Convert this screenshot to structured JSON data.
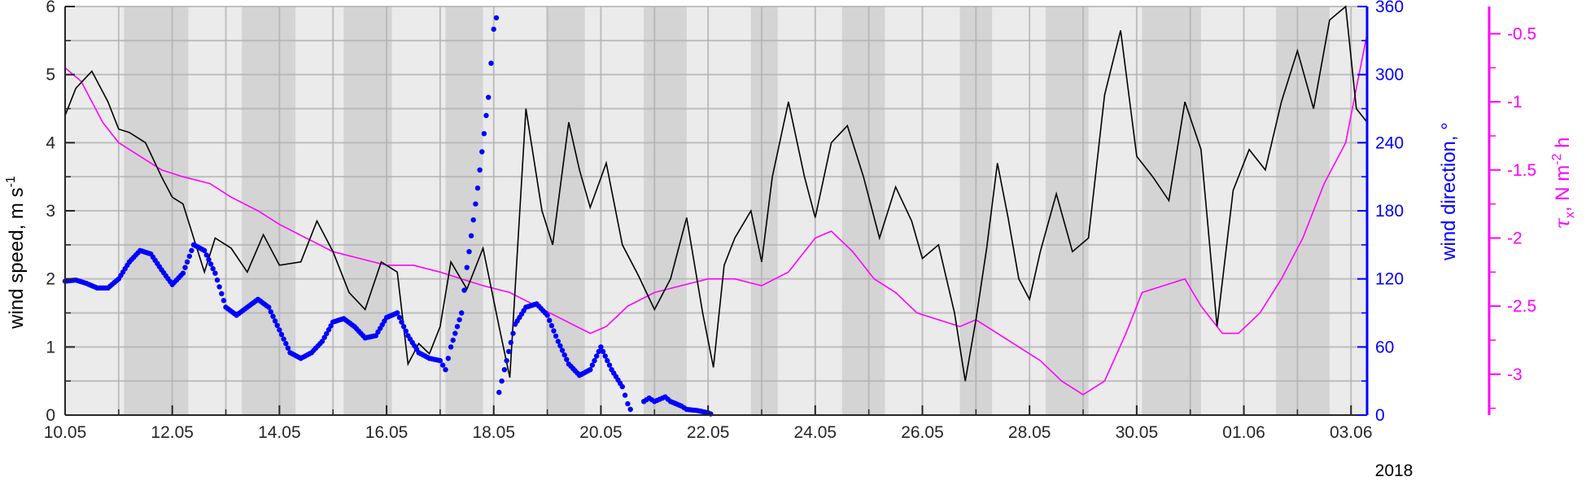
{
  "chart_data": {
    "type": "line",
    "x_axis": {
      "tick_labels": [
        "10.05",
        "12.05",
        "14.05",
        "16.05",
        "18.05",
        "20.05",
        "22.05",
        "24.05",
        "26.05",
        "28.05",
        "30.05",
        "01.06",
        "03.06"
      ],
      "range": [
        "2018-05-10",
        "2018-06-04"
      ],
      "year_label": "2018"
    },
    "y_left": {
      "label_main": "wind speed, m s",
      "label_sup": "-1",
      "range": [
        0,
        6
      ],
      "ticks": [
        "0",
        "1",
        "2",
        "3",
        "4",
        "5",
        "6"
      ],
      "color": "#000000"
    },
    "y_right1": {
      "label": "wind direction, °",
      "range": [
        0,
        360
      ],
      "ticks": [
        "0",
        "60",
        "120",
        "180",
        "240",
        "300",
        "360"
      ],
      "color": "#0000ff"
    },
    "y_right2": {
      "label_tau": "τ",
      "label_sub": "x",
      "label_mid": ", N m",
      "label_sup": "-2",
      "label_end": " h",
      "range": [
        -3.3,
        -0.3
      ],
      "ticks": [
        "-3",
        "-2.5",
        "-2",
        "-1.5",
        "-1",
        "-0.5"
      ],
      "color": "#ff00ff"
    },
    "grid": true,
    "background_bands": {
      "description": "alternating light/dark day shading",
      "light": "#ebebeb",
      "dark": "#d4d4d4",
      "dark_intervals": [
        [
          "2018-05-11.1",
          "2018-05-12.3"
        ],
        [
          "2018-05-13.3",
          "2018-05-14.3"
        ],
        [
          "2018-05-15.2",
          "2018-05-16.1"
        ],
        [
          "2018-05-17.1",
          "2018-05-17.8"
        ],
        [
          "2018-05-19.0",
          "2018-05-19.7"
        ],
        [
          "2018-05-20.8",
          "2018-05-21.6"
        ],
        [
          "2018-05-22.8",
          "2018-05-23.3"
        ],
        [
          "2018-05-24.5",
          "2018-05-25.3"
        ],
        [
          "2018-05-26.7",
          "2018-05-27.3"
        ],
        [
          "2018-05-28.3",
          "2018-05-29.1"
        ],
        [
          "2018-05-30.1",
          "2018-05-31.2"
        ],
        [
          "2018-06-01.6",
          "2018-06-02.6"
        ]
      ]
    },
    "series": [
      {
        "kind": "wind_speed",
        "axis": "left",
        "color": "#000000",
        "style": "line",
        "points": [
          [
            "05-10.0",
            4.4
          ],
          [
            "05-10.2",
            4.8
          ],
          [
            "05-10.5",
            5.05
          ],
          [
            "05-10.8",
            4.6
          ],
          [
            "05-11.0",
            4.2
          ],
          [
            "05-11.2",
            4.15
          ],
          [
            "05-11.5",
            4.0
          ],
          [
            "05-11.8",
            3.5
          ],
          [
            "05-12.0",
            3.2
          ],
          [
            "05-12.2",
            3.1
          ],
          [
            "05-12.4",
            2.6
          ],
          [
            "05-12.6",
            2.1
          ],
          [
            "05-12.8",
            2.6
          ],
          [
            "05-13.1",
            2.45
          ],
          [
            "05-13.4",
            2.1
          ],
          [
            "05-13.7",
            2.65
          ],
          [
            "05-14.0",
            2.2
          ],
          [
            "05-14.4",
            2.25
          ],
          [
            "05-14.7",
            2.85
          ],
          [
            "05-15.0",
            2.4
          ],
          [
            "05-15.3",
            1.8
          ],
          [
            "05-15.6",
            1.55
          ],
          [
            "05-15.9",
            2.25
          ],
          [
            "05-16.2",
            2.1
          ],
          [
            "05-16.4",
            0.75
          ],
          [
            "05-16.6",
            1.05
          ],
          [
            "05-16.8",
            0.9
          ],
          [
            "05-17.0",
            1.3
          ],
          [
            "05-17.2",
            2.25
          ],
          [
            "05-17.5",
            1.85
          ],
          [
            "05-17.8",
            2.45
          ],
          [
            "05-18.1",
            1.3
          ],
          [
            "05-18.3",
            0.55
          ],
          [
            "05-18.6",
            4.5
          ],
          [
            "05-18.9",
            3.0
          ],
          [
            "05-19.1",
            2.5
          ],
          [
            "05-19.4",
            4.3
          ],
          [
            "05-19.6",
            3.6
          ],
          [
            "05-19.8",
            3.05
          ],
          [
            "05-20.1",
            3.7
          ],
          [
            "05-20.4",
            2.5
          ],
          [
            "05-20.7",
            2.05
          ],
          [
            "05-21.0",
            1.55
          ],
          [
            "05-21.3",
            2.0
          ],
          [
            "05-21.6",
            2.9
          ],
          [
            "05-21.9",
            1.5
          ],
          [
            "05-22.1",
            0.7
          ],
          [
            "05-22.3",
            2.2
          ],
          [
            "05-22.5",
            2.6
          ],
          [
            "05-22.8",
            3.0
          ],
          [
            "05-23.0",
            2.25
          ],
          [
            "05-23.2",
            3.5
          ],
          [
            "05-23.5",
            4.6
          ],
          [
            "05-23.8",
            3.5
          ],
          [
            "05-24.0",
            2.9
          ],
          [
            "05-24.3",
            4.0
          ],
          [
            "05-24.6",
            4.25
          ],
          [
            "05-24.9",
            3.5
          ],
          [
            "05-25.2",
            2.6
          ],
          [
            "05-25.5",
            3.35
          ],
          [
            "05-25.8",
            2.85
          ],
          [
            "05-26.0",
            2.3
          ],
          [
            "05-26.3",
            2.5
          ],
          [
            "05-26.6",
            1.5
          ],
          [
            "05-26.8",
            0.5
          ],
          [
            "05-27.0",
            1.4
          ],
          [
            "05-27.2",
            2.45
          ],
          [
            "05-27.4",
            3.7
          ],
          [
            "05-27.6",
            2.9
          ],
          [
            "05-27.8",
            2.0
          ],
          [
            "05-28.0",
            1.7
          ],
          [
            "05-28.2",
            2.4
          ],
          [
            "05-28.5",
            3.25
          ],
          [
            "05-28.8",
            2.4
          ],
          [
            "05-29.1",
            2.6
          ],
          [
            "05-29.4",
            4.7
          ],
          [
            "05-29.7",
            5.65
          ],
          [
            "05-30.0",
            3.8
          ],
          [
            "05-30.3",
            3.5
          ],
          [
            "05-30.6",
            3.15
          ],
          [
            "05-30.9",
            4.6
          ],
          [
            "05-31.2",
            3.9
          ],
          [
            "05-31.5",
            1.3
          ],
          [
            "05-31.8",
            3.3
          ],
          [
            "06-01.1",
            3.9
          ],
          [
            "06-01.4",
            3.6
          ],
          [
            "06-01.7",
            4.6
          ],
          [
            "06-02.0",
            5.35
          ],
          [
            "06-02.3",
            4.5
          ],
          [
            "06-02.6",
            5.8
          ],
          [
            "06-02.9",
            6.0
          ],
          [
            "06-03.1",
            4.5
          ],
          [
            "06-03.3",
            4.3
          ]
        ]
      },
      {
        "kind": "wind_direction",
        "axis": "right1",
        "color": "#0000ff",
        "style": "dots",
        "points": [
          [
            "05-10.0",
            118
          ],
          [
            "05-10.2",
            119
          ],
          [
            "05-10.4",
            116
          ],
          [
            "05-10.6",
            112
          ],
          [
            "05-10.8",
            112
          ],
          [
            "05-11.0",
            120
          ],
          [
            "05-11.2",
            135
          ],
          [
            "05-11.4",
            145
          ],
          [
            "05-11.6",
            142
          ],
          [
            "05-11.8",
            128
          ],
          [
            "05-12.0",
            115
          ],
          [
            "05-12.2",
            125
          ],
          [
            "05-12.4",
            150
          ],
          [
            "05-12.6",
            145
          ],
          [
            "05-12.8",
            125
          ],
          [
            "05-13.0",
            95
          ],
          [
            "05-13.2",
            88
          ],
          [
            "05-13.4",
            95
          ],
          [
            "05-13.6",
            102
          ],
          [
            "05-13.8",
            95
          ],
          [
            "05-14.0",
            75
          ],
          [
            "05-14.2",
            55
          ],
          [
            "05-14.4",
            50
          ],
          [
            "05-14.6",
            55
          ],
          [
            "05-14.8",
            65
          ],
          [
            "05-15.0",
            82
          ],
          [
            "05-15.2",
            85
          ],
          [
            "05-15.4",
            78
          ],
          [
            "05-15.6",
            68
          ],
          [
            "05-15.8",
            70
          ],
          [
            "05-16.0",
            86
          ],
          [
            "05-16.2",
            90
          ],
          [
            "05-16.4",
            70
          ],
          [
            "05-16.6",
            55
          ],
          [
            "05-16.8",
            50
          ],
          [
            "05-17.0",
            48
          ],
          [
            "05-17.1",
            40
          ],
          [
            "05-17.2",
            60
          ],
          [
            "05-17.4",
            90
          ],
          [
            "05-17.5",
            130
          ],
          [
            "05-17.7",
            200
          ],
          [
            "05-17.9",
            280
          ],
          [
            "05-18.0",
            340
          ],
          [
            "05-18.1",
            360
          ]
        ],
        "segments": [
          [
            [
              "05-18.1",
              20
            ],
            [
              "05-18.2",
              40
            ],
            [
              "05-18.4",
              80
            ],
            [
              "05-18.6",
              95
            ],
            [
              "05-18.8",
              98
            ],
            [
              "05-19.0",
              88
            ],
            [
              "05-19.2",
              65
            ],
            [
              "05-19.4",
              45
            ],
            [
              "05-19.6",
              35
            ],
            [
              "05-19.8",
              40
            ],
            [
              "05-20.0",
              60
            ],
            [
              "05-20.2",
              40
            ],
            [
              "05-20.4",
              25
            ],
            [
              "05-20.5",
              10
            ],
            [
              "05-20.6",
              0
            ]
          ],
          [
            [
              "05-20.8",
              12
            ],
            [
              "05-20.9",
              15
            ],
            [
              "05-21.0",
              12
            ],
            [
              "05-21.1",
              14
            ],
            [
              "05-21.2",
              16
            ],
            [
              "05-21.3",
              12
            ],
            [
              "05-21.5",
              8
            ],
            [
              "05-21.6",
              5
            ],
            [
              "05-21.8",
              4
            ],
            [
              "05-22.0",
              2
            ],
            [
              "05-22.1",
              0
            ]
          ]
        ]
      },
      {
        "kind": "tau_x",
        "axis": "right2",
        "color": "#ff00ff",
        "style": "line",
        "points": [
          [
            "05-10.0",
            -0.75
          ],
          [
            "05-10.3",
            -0.85
          ],
          [
            "05-10.7",
            -1.15
          ],
          [
            "05-11.0",
            -1.3
          ],
          [
            "05-11.4",
            -1.4
          ],
          [
            "05-11.8",
            -1.5
          ],
          [
            "05-12.2",
            -1.55
          ],
          [
            "05-12.7",
            -1.6
          ],
          [
            "05-13.1",
            -1.7
          ],
          [
            "05-13.6",
            -1.8
          ],
          [
            "05-14.0",
            -1.9
          ],
          [
            "05-14.5",
            -2.0
          ],
          [
            "05-15.0",
            -2.1
          ],
          [
            "05-15.5",
            -2.15
          ],
          [
            "05-16.0",
            -2.2
          ],
          [
            "05-16.5",
            -2.2
          ],
          [
            "05-17.0",
            -2.25
          ],
          [
            "05-17.4",
            -2.3
          ],
          [
            "05-17.8",
            -2.35
          ],
          [
            "05-18.3",
            -2.4
          ],
          [
            "05-18.8",
            -2.5
          ],
          [
            "05-19.3",
            -2.6
          ],
          [
            "05-19.8",
            -2.7
          ],
          [
            "05-20.1",
            -2.65
          ],
          [
            "05-20.5",
            -2.5
          ],
          [
            "05-21.0",
            -2.4
          ],
          [
            "05-21.5",
            -2.35
          ],
          [
            "05-22.0",
            -2.3
          ],
          [
            "05-22.5",
            -2.3
          ],
          [
            "05-23.0",
            -2.35
          ],
          [
            "05-23.5",
            -2.25
          ],
          [
            "05-24.0",
            -2.0
          ],
          [
            "05-24.3",
            -1.95
          ],
          [
            "05-24.7",
            -2.1
          ],
          [
            "05-25.1",
            -2.3
          ],
          [
            "05-25.5",
            -2.4
          ],
          [
            "05-25.9",
            -2.55
          ],
          [
            "05-26.3",
            -2.6
          ],
          [
            "05-26.7",
            -2.65
          ],
          [
            "05-27.0",
            -2.6
          ],
          [
            "05-27.4",
            -2.7
          ],
          [
            "05-27.8",
            -2.8
          ],
          [
            "05-28.2",
            -2.9
          ],
          [
            "05-28.6",
            -3.05
          ],
          [
            "05-29.0",
            -3.15
          ],
          [
            "05-29.4",
            -3.05
          ],
          [
            "05-29.8",
            -2.7
          ],
          [
            "05-30.1",
            -2.4
          ],
          [
            "05-30.5",
            -2.35
          ],
          [
            "05-30.9",
            -2.3
          ],
          [
            "05-31.2",
            -2.5
          ],
          [
            "05-31.6",
            -2.7
          ],
          [
            "05-31.9",
            -2.7
          ],
          [
            "06-01.3",
            -2.55
          ],
          [
            "06-01.7",
            -2.3
          ],
          [
            "06-02.1",
            -2.0
          ],
          [
            "06-02.5",
            -1.6
          ],
          [
            "06-02.9",
            -1.3
          ],
          [
            "06-03.1",
            -0.9
          ],
          [
            "06-03.3",
            -0.5
          ]
        ]
      }
    ]
  }
}
